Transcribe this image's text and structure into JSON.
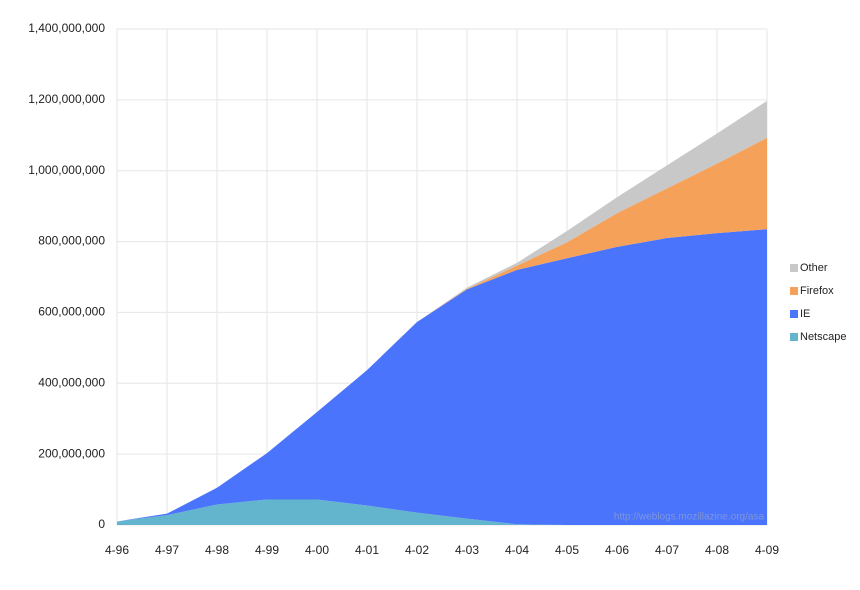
{
  "chart_data": {
    "type": "stacked-area",
    "categories": [
      "4-96",
      "4-97",
      "4-98",
      "4-99",
      "4-00",
      "4-01",
      "4-02",
      "4-03",
      "4-04",
      "4-05",
      "4-06",
      "4-07",
      "4-08",
      "4-09"
    ],
    "series": [
      {
        "name": "Netscape",
        "color": "#62b5cc",
        "values": [
          10000000,
          28000000,
          58000000,
          72000000,
          72000000,
          55000000,
          35000000,
          18000000,
          2000000,
          0,
          0,
          0,
          0,
          0
        ]
      },
      {
        "name": "IE",
        "color": "#4a74fc",
        "values": [
          0,
          4000000,
          47000000,
          131000000,
          247000000,
          382000000,
          538000000,
          647000000,
          718000000,
          753000000,
          785000000,
          810000000,
          824000000,
          835000000
        ]
      },
      {
        "name": "Firefox",
        "color": "#f6a15a",
        "values": [
          0,
          0,
          0,
          0,
          0,
          0,
          0,
          2000000,
          12000000,
          45000000,
          95000000,
          140000000,
          196000000,
          258000000
        ]
      },
      {
        "name": "Other",
        "color": "#c8c8c8",
        "values": [
          0,
          0,
          0,
          0,
          0,
          0,
          0,
          3000000,
          8000000,
          32000000,
          45000000,
          65000000,
          85000000,
          104000000
        ]
      }
    ],
    "ylim": [
      0,
      1400000000
    ],
    "yticks": [
      0,
      {
        "value": 200000000,
        "label": "200,000,000"
      },
      {
        "value": 400000000,
        "label": "400,000,000"
      },
      {
        "value": 600000000,
        "label": "600,000,000"
      },
      {
        "value": 800000000,
        "label": "800,000,000"
      },
      {
        "value": 1000000000,
        "label": "1,000,000,000"
      },
      {
        "value": 1200000000,
        "label": "1,200,000,000"
      },
      {
        "value": 1400000000,
        "label": "1,400,000,000"
      }
    ],
    "annotation": "http://weblogs.mozillazine.org/asa",
    "grid": true,
    "legend": "right"
  }
}
